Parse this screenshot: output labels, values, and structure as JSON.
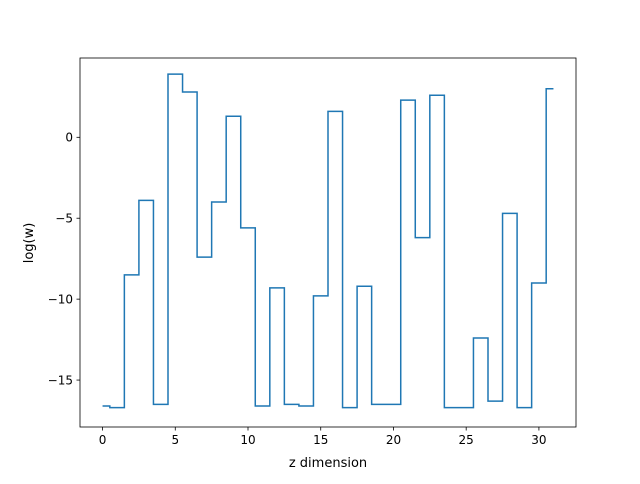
{
  "chart_data": {
    "type": "line",
    "drawstyle": "steps-mid",
    "title": "",
    "xlabel": "z dimension",
    "ylabel": "log(w)",
    "xlim": [
      -1.55,
      32.55
    ],
    "ylim": [
      -17.9,
      4.9
    ],
    "xticks": [
      0,
      5,
      10,
      15,
      20,
      25,
      30
    ],
    "xtick_labels": [
      "0",
      "5",
      "10",
      "15",
      "20",
      "25",
      "30"
    ],
    "yticks": [
      -15,
      -10,
      -5,
      0
    ],
    "ytick_labels": [
      "−15",
      "−10",
      "−5",
      "0"
    ],
    "grid": false,
    "legend": "none",
    "series": [
      {
        "color": "#1f77b4",
        "x": [
          0,
          1,
          2,
          3,
          4,
          5,
          6,
          7,
          8,
          9,
          10,
          11,
          12,
          13,
          14,
          15,
          16,
          17,
          18,
          19,
          20,
          21,
          22,
          23,
          24,
          25,
          26,
          27,
          28,
          29,
          30,
          31
        ],
        "y": [
          -16.6,
          -16.7,
          -8.5,
          -3.9,
          -16.5,
          3.9,
          2.8,
          -7.4,
          -4.0,
          1.3,
          -5.6,
          -16.6,
          -9.3,
          -16.5,
          -16.6,
          -9.8,
          1.6,
          -16.7,
          -9.2,
          -16.5,
          -16.5,
          2.3,
          -6.2,
          2.6,
          -16.7,
          -16.7,
          -12.4,
          -16.3,
          -4.7,
          -16.7,
          -9.0,
          3.0
        ]
      }
    ]
  }
}
